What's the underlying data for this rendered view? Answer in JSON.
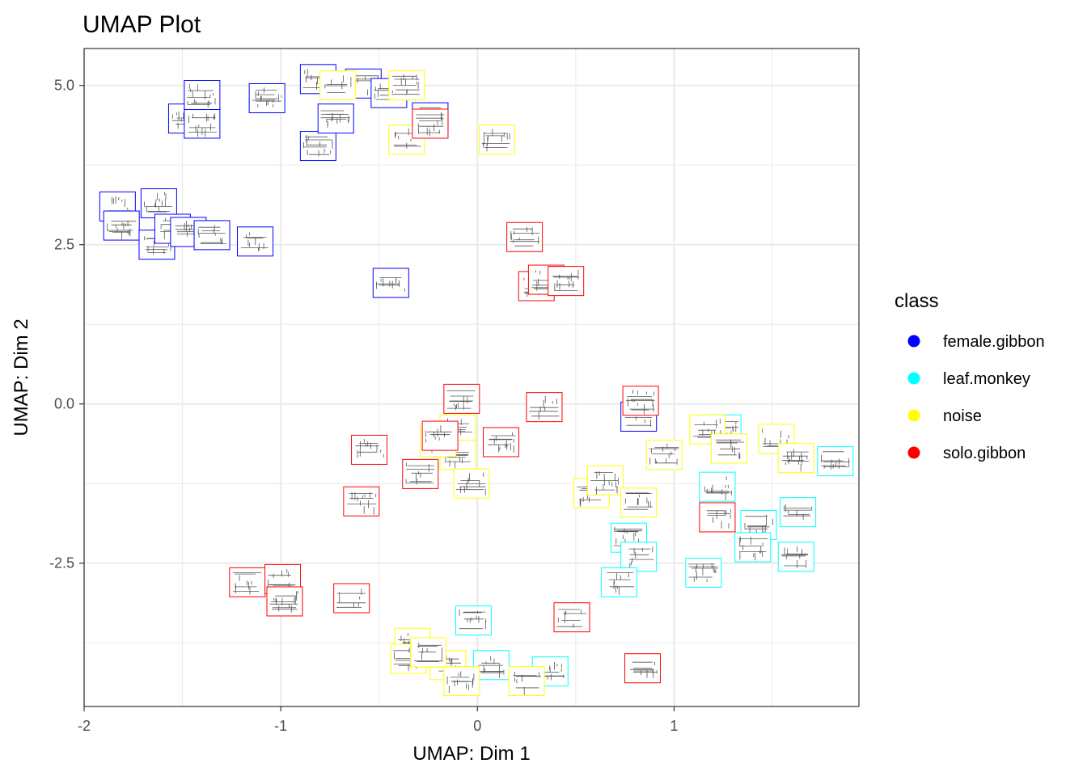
{
  "chart_data": {
    "type": "scatter",
    "title": "UMAP Plot",
    "xlabel": "UMAP: Dim 1",
    "ylabel": "UMAP: Dim 2",
    "xlim": [
      -2.0,
      1.94
    ],
    "ylim": [
      -4.75,
      5.58
    ],
    "x_ticks": [
      -2,
      -1,
      0,
      1
    ],
    "x_tick_labels": [
      "-2",
      "-1",
      "0",
      "1"
    ],
    "y_ticks": [
      -2.5,
      0,
      2.5,
      5
    ],
    "y_tick_labels": [
      "-2.5",
      "0.0",
      "2.5",
      "5.0"
    ],
    "grid": true,
    "marker": "spectrogram-thumbnail",
    "legend": {
      "title": "class",
      "placement": "right",
      "entries": [
        "female.gibbon",
        "leaf.monkey",
        "noise",
        "solo.gibbon"
      ]
    },
    "colors": {
      "female.gibbon": "#0000FF",
      "leaf.monkey": "#00FFFF",
      "noise": "#FFFF00",
      "solo.gibbon": "#FF0000"
    },
    "series": [
      {
        "name": "female.gibbon",
        "points": [
          [
            -1.48,
            4.48
          ],
          [
            -1.4,
            4.4
          ],
          [
            -1.4,
            4.85
          ],
          [
            -1.07,
            4.8
          ],
          [
            -0.81,
            5.1
          ],
          [
            -0.58,
            5.03
          ],
          [
            -0.45,
            4.88
          ],
          [
            -0.81,
            4.05
          ],
          [
            -0.72,
            4.48
          ],
          [
            -0.24,
            4.5
          ],
          [
            -1.83,
            3.1
          ],
          [
            -1.81,
            2.8
          ],
          [
            -1.63,
            2.5
          ],
          [
            -1.62,
            3.15
          ],
          [
            -1.55,
            2.75
          ],
          [
            -1.47,
            2.7
          ],
          [
            -1.35,
            2.65
          ],
          [
            -1.13,
            2.55
          ],
          [
            -0.44,
            1.9
          ],
          [
            0.82,
            -0.2
          ]
        ]
      },
      {
        "name": "leaf.monkey",
        "points": [
          [
            1.25,
            -0.4
          ],
          [
            1.22,
            -1.3
          ],
          [
            1.43,
            -1.9
          ],
          [
            1.63,
            -1.7
          ],
          [
            1.82,
            -0.9
          ],
          [
            1.4,
            -2.25
          ],
          [
            1.62,
            -2.4
          ],
          [
            1.15,
            -2.65
          ],
          [
            0.77,
            -2.1
          ],
          [
            0.82,
            -2.4
          ],
          [
            0.72,
            -2.8
          ],
          [
            -0.02,
            -3.4
          ],
          [
            0.07,
            -4.1
          ],
          [
            0.37,
            -4.2
          ]
        ]
      },
      {
        "name": "noise",
        "points": [
          [
            -0.36,
            5.0
          ],
          [
            -0.71,
            5.0
          ],
          [
            -0.36,
            4.15
          ],
          [
            0.1,
            4.15
          ],
          [
            -0.1,
            -0.4
          ],
          [
            -0.1,
            -0.8
          ],
          [
            -0.2,
            -0.6
          ],
          [
            -0.03,
            -1.25
          ],
          [
            1.17,
            -0.4
          ],
          [
            0.58,
            -1.4
          ],
          [
            0.65,
            -1.2
          ],
          [
            0.82,
            -1.55
          ],
          [
            0.95,
            -0.8
          ],
          [
            1.28,
            -0.7
          ],
          [
            1.52,
            -0.55
          ],
          [
            1.62,
            -0.85
          ],
          [
            -0.33,
            -3.75
          ],
          [
            -0.35,
            -4.0
          ],
          [
            -0.15,
            -4.1
          ],
          [
            -0.08,
            -4.35
          ],
          [
            0.25,
            -4.35
          ],
          [
            -0.25,
            -3.9
          ]
        ]
      },
      {
        "name": "solo.gibbon",
        "points": [
          [
            -0.24,
            4.4
          ],
          [
            0.24,
            2.62
          ],
          [
            0.3,
            1.85
          ],
          [
            0.35,
            1.95
          ],
          [
            0.45,
            1.93
          ],
          [
            -0.08,
            0.08
          ],
          [
            0.34,
            -0.05
          ],
          [
            -0.19,
            -0.5
          ],
          [
            0.12,
            -0.6
          ],
          [
            -0.29,
            -1.1
          ],
          [
            -0.55,
            -0.72
          ],
          [
            -0.59,
            -1.53
          ],
          [
            -1.17,
            -2.8
          ],
          [
            -0.99,
            -2.75
          ],
          [
            -0.98,
            -3.1
          ],
          [
            -0.64,
            -3.05
          ],
          [
            0.48,
            -3.35
          ],
          [
            0.84,
            -4.15
          ],
          [
            0.83,
            0.05
          ],
          [
            1.22,
            -1.78
          ]
        ]
      }
    ]
  }
}
